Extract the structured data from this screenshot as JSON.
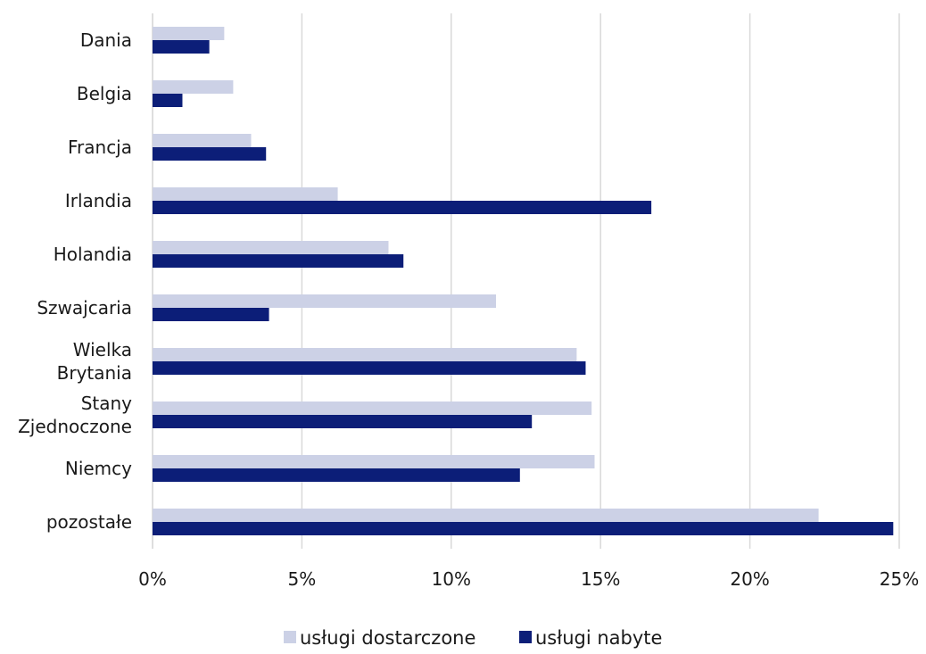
{
  "chart_data": {
    "type": "bar",
    "orientation": "horizontal",
    "title": "",
    "xlabel": "",
    "ylabel": "",
    "categories": [
      [
        "Dania"
      ],
      [
        "Belgia"
      ],
      [
        "Francja"
      ],
      [
        "Irlandia"
      ],
      [
        "Holandia"
      ],
      [
        "Szwajcaria"
      ],
      [
        "Wielka",
        "Brytania"
      ],
      [
        "Stany",
        "Zjednoczone"
      ],
      [
        "Niemcy"
      ],
      [
        "pozostałe"
      ]
    ],
    "series": [
      {
        "name": "usługi dostarczone",
        "color": "#ccd1e6",
        "values": [
          2.4,
          2.7,
          3.3,
          6.2,
          7.9,
          11.5,
          14.2,
          14.7,
          14.8,
          22.3
        ]
      },
      {
        "name": "usługi nabyte",
        "color": "#0c1e78",
        "values": [
          1.9,
          1.0,
          3.8,
          16.7,
          8.4,
          3.9,
          14.5,
          12.7,
          12.3,
          24.8
        ]
      }
    ],
    "xlim": [
      0,
      25
    ],
    "xticks": [
      0,
      5,
      10,
      15,
      20,
      25
    ],
    "tick_suffix": "%",
    "grid": true,
    "legend_position": "bottom"
  }
}
